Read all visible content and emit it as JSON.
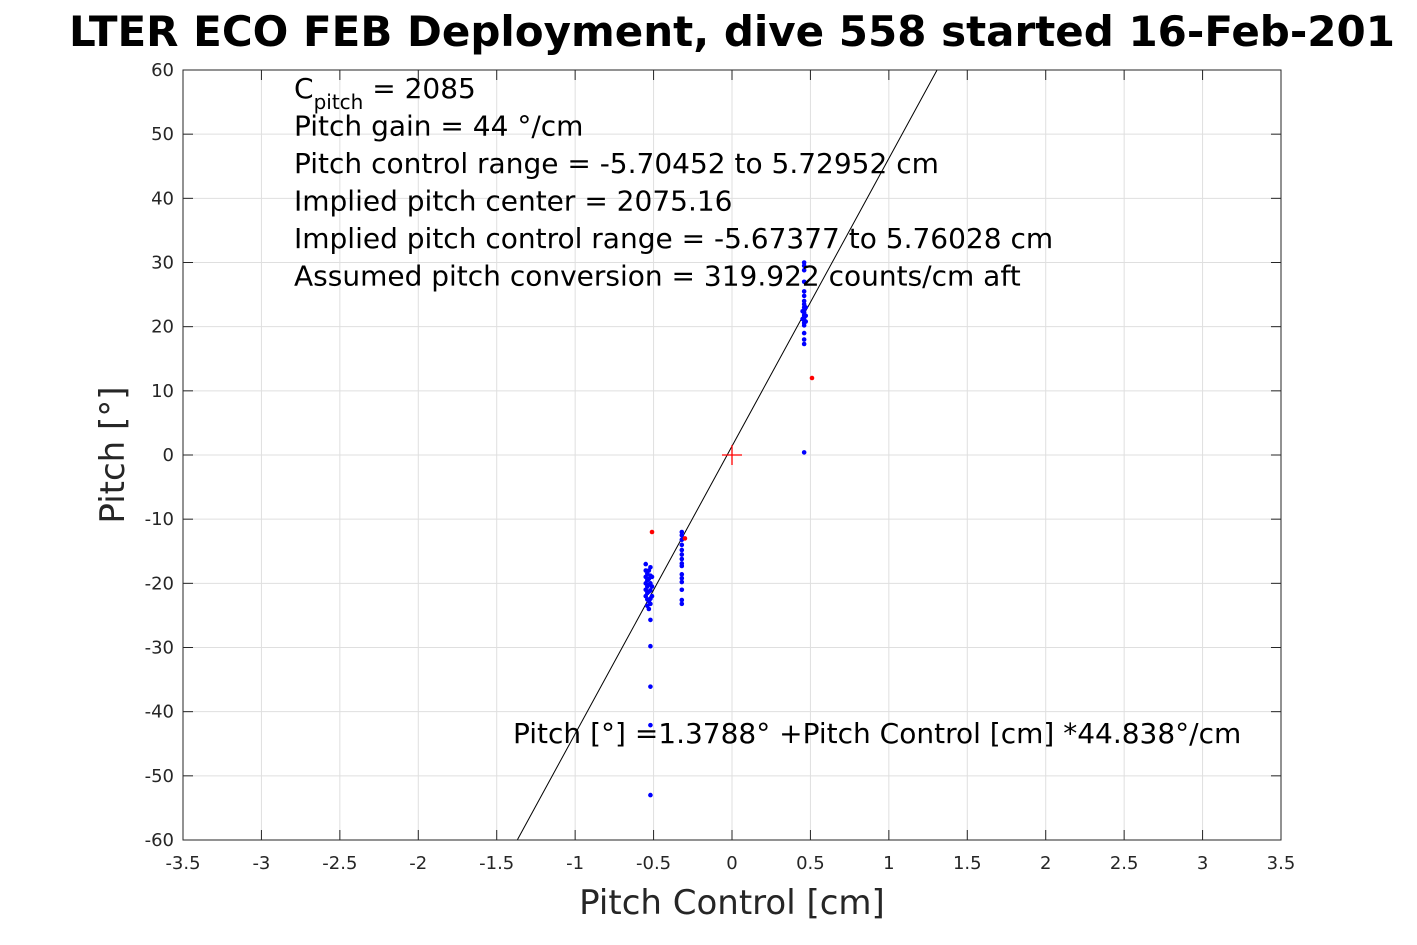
{
  "chart_data": {
    "type": "scatter",
    "title": "LTER ECO FEB Deployment, dive 558 started 16-Feb-201",
    "xlabel": "Pitch Control [cm]",
    "ylabel": "Pitch [°]",
    "xlim": [
      -3.5,
      3.5
    ],
    "ylim": [
      -60,
      60
    ],
    "xticks": [
      -3.5,
      -3,
      -2.5,
      -2,
      -1.5,
      -1,
      -0.5,
      0,
      0.5,
      1,
      1.5,
      2,
      2.5,
      3,
      3.5
    ],
    "xtick_labels": [
      "-3.5",
      "-3",
      "-2.5",
      "-2",
      "-1.5",
      "-1",
      "-0.5",
      "0",
      "0.5",
      "1",
      "1.5",
      "2",
      "2.5",
      "3",
      "3.5"
    ],
    "yticks": [
      -60,
      -50,
      -40,
      -30,
      -20,
      -10,
      0,
      10,
      20,
      30,
      40,
      50,
      60
    ],
    "ytick_labels": [
      "-60",
      "-50",
      "-40",
      "-30",
      "-20",
      "-10",
      "0",
      "10",
      "20",
      "30",
      "40",
      "50",
      "60"
    ],
    "grid": true,
    "colors": {
      "main_points": "#0000ff",
      "outlier_points": "#ff0000",
      "fit_line": "#000000",
      "center_marker": "#ff0000"
    },
    "annotations": [
      {
        "prefix": "C",
        "sub": "pitch",
        "suffix": " = 2085"
      },
      {
        "text": "Pitch gain = 44 °/cm"
      },
      {
        "text": "Pitch control range = -5.70452 to 5.72952 cm"
      },
      {
        "text": "Implied pitch center = 2075.16"
      },
      {
        "text": "Implied pitch control range = -5.67377 to 5.76028 cm"
      },
      {
        "text": "Assumed pitch conversion = 319.922 counts/cm aft"
      }
    ],
    "fit_label": "Pitch [°] =1.3788° +Pitch Control [cm] *44.838°/cm",
    "fit": {
      "intercept": 1.3788,
      "slope": 44.838
    },
    "center_marker": {
      "x": 0,
      "y": 0
    },
    "series": [
      {
        "marker": "dot",
        "color": "#0000ff",
        "points": [
          [
            0.46,
            30.0
          ],
          [
            0.46,
            29.5
          ],
          [
            0.46,
            28.8
          ],
          [
            0.46,
            27.0
          ],
          [
            0.46,
            25.5
          ],
          [
            0.46,
            24.8
          ],
          [
            0.46,
            24.0
          ],
          [
            0.46,
            23.5
          ],
          [
            0.46,
            23.0
          ],
          [
            0.46,
            22.6
          ],
          [
            0.46,
            22.2
          ],
          [
            0.46,
            21.8
          ],
          [
            0.46,
            21.4
          ],
          [
            0.46,
            21.0
          ],
          [
            0.46,
            20.6
          ],
          [
            0.46,
            20.2
          ],
          [
            0.46,
            19.0
          ],
          [
            0.46,
            18.0
          ],
          [
            0.46,
            17.3
          ],
          [
            0.46,
            0.4
          ],
          [
            0.47,
            23.0
          ],
          [
            0.47,
            21.7
          ],
          [
            0.47,
            20.8
          ],
          [
            0.45,
            22.4
          ],
          [
            0.45,
            21.2
          ],
          [
            -0.32,
            -12.0
          ],
          [
            -0.32,
            -12.5
          ],
          [
            -0.32,
            -13.2
          ],
          [
            -0.32,
            -14.0
          ],
          [
            -0.32,
            -14.8
          ],
          [
            -0.32,
            -15.5
          ],
          [
            -0.32,
            -16.2
          ],
          [
            -0.32,
            -16.9
          ],
          [
            -0.32,
            -17.3
          ],
          [
            -0.32,
            -18.6
          ],
          [
            -0.32,
            -19.2
          ],
          [
            -0.32,
            -19.8
          ],
          [
            -0.32,
            -21.0
          ],
          [
            -0.32,
            -22.6
          ],
          [
            -0.32,
            -23.2
          ],
          [
            -0.55,
            -17.0
          ],
          [
            -0.55,
            -18.0
          ],
          [
            -0.55,
            -19.0
          ],
          [
            -0.55,
            -20.0
          ],
          [
            -0.55,
            -21.0
          ],
          [
            -0.55,
            -22.0
          ],
          [
            -0.54,
            -18.5
          ],
          [
            -0.54,
            -19.5
          ],
          [
            -0.54,
            -20.5
          ],
          [
            -0.54,
            -21.5
          ],
          [
            -0.54,
            -22.5
          ],
          [
            -0.54,
            -23.5
          ],
          [
            -0.53,
            -18.0
          ],
          [
            -0.53,
            -19.3
          ],
          [
            -0.53,
            -20.2
          ],
          [
            -0.53,
            -21.3
          ],
          [
            -0.53,
            -22.8
          ],
          [
            -0.53,
            -24.0
          ],
          [
            -0.52,
            -17.5
          ],
          [
            -0.52,
            -18.8
          ],
          [
            -0.52,
            -20.0
          ],
          [
            -0.52,
            -21.1
          ],
          [
            -0.52,
            -22.4
          ],
          [
            -0.52,
            -23.2
          ],
          [
            -0.51,
            -19.0
          ],
          [
            -0.51,
            -20.5
          ],
          [
            -0.51,
            -22.0
          ],
          [
            -0.52,
            -25.7
          ],
          [
            -0.52,
            -29.8
          ],
          [
            -0.52,
            -36.1
          ],
          [
            -0.52,
            -42.1
          ],
          [
            -0.52,
            -53.0
          ]
        ]
      },
      {
        "marker": "dot",
        "color": "#ff0000",
        "points": [
          [
            0.51,
            12.0
          ],
          [
            -0.51,
            -12.0
          ],
          [
            -0.3,
            -13.0
          ]
        ]
      }
    ]
  }
}
